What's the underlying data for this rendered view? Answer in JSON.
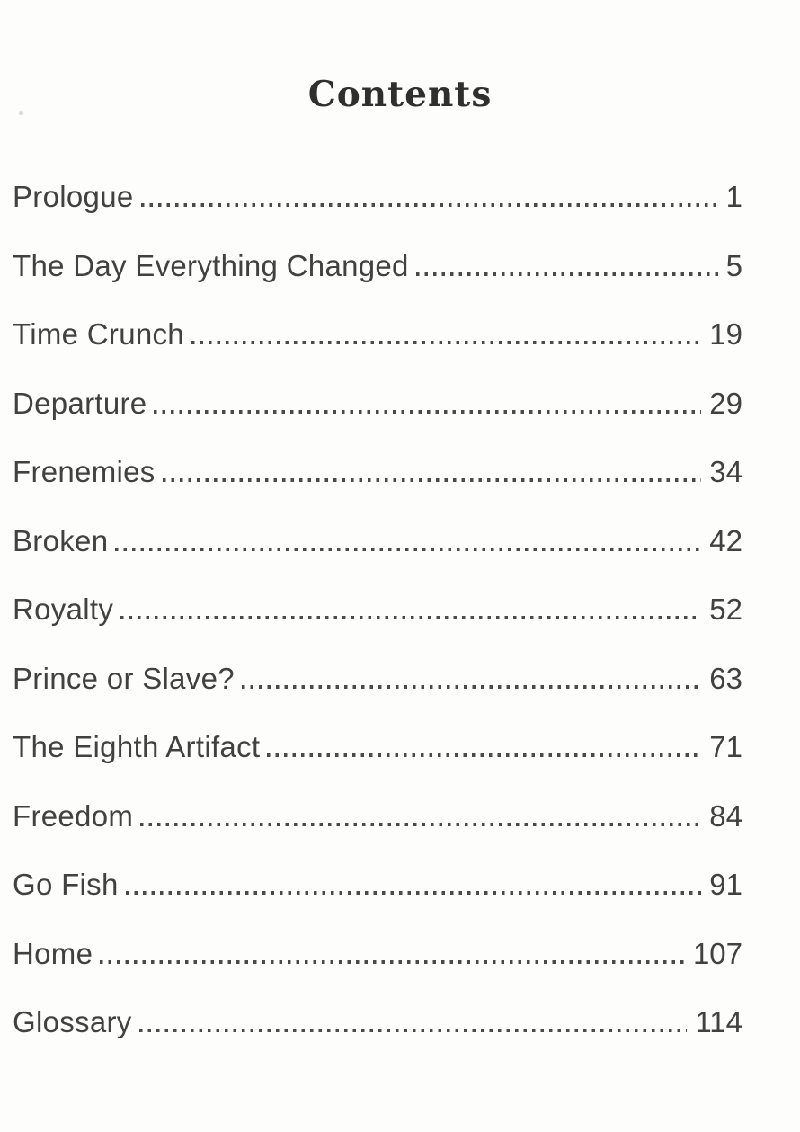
{
  "page": {
    "title": "Contents",
    "entries": [
      {
        "label": "Prologue",
        "page": "1"
      },
      {
        "label": "The Day Everything Changed",
        "page": "5"
      },
      {
        "label": "Time Crunch",
        "page": "19"
      },
      {
        "label": "Departure",
        "page": "29"
      },
      {
        "label": "Frenemies",
        "page": "34"
      },
      {
        "label": "Broken",
        "page": "42"
      },
      {
        "label": "Royalty",
        "page": "52"
      },
      {
        "label": "Prince or Slave?",
        "page": "63"
      },
      {
        "label": "The Eighth Artifact",
        "page": "71"
      },
      {
        "label": "Freedom",
        "page": "84"
      },
      {
        "label": "Go Fish",
        "page": "91"
      },
      {
        "label": "Home",
        "page": "107"
      },
      {
        "label": "Glossary",
        "page": "114"
      }
    ]
  },
  "colors": {
    "background": "#fdfdfc",
    "text": "#414141",
    "title_text": "#2f2f2f",
    "dot_leader": "#4a4a4a"
  }
}
